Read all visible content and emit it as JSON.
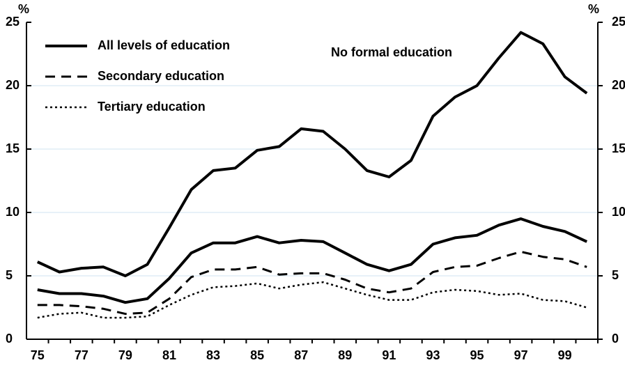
{
  "chart_data": {
    "type": "line",
    "y_label": "%",
    "y2_label": "%",
    "categories": [
      "75",
      null,
      "77",
      null,
      "79",
      null,
      "81",
      null,
      "83",
      null,
      "85",
      null,
      "87",
      null,
      "89",
      null,
      "91",
      null,
      "93",
      null,
      "95",
      null,
      "97",
      null,
      "99",
      null
    ],
    "series": [
      {
        "name": "No formal education",
        "color": "#000000",
        "style": "solid",
        "in_legend": false,
        "values": [
          6.1,
          5.3,
          5.6,
          5.7,
          5.0,
          5.9,
          8.8,
          11.8,
          13.3,
          13.5,
          14.9,
          15.2,
          16.6,
          16.4,
          15.0,
          13.3,
          12.8,
          14.1,
          17.6,
          19.1,
          20.0,
          22.2,
          24.2,
          23.3,
          20.7,
          19.4
        ]
      },
      {
        "name": "All levels of education",
        "color": "#000000",
        "style": "solid",
        "in_legend": true,
        "values": [
          3.9,
          3.6,
          3.6,
          3.4,
          2.9,
          3.2,
          4.8,
          6.8,
          7.6,
          7.6,
          8.1,
          7.6,
          7.8,
          7.7,
          6.8,
          5.9,
          5.4,
          5.9,
          7.5,
          8.0,
          8.2,
          9.0,
          9.5,
          8.9,
          8.5,
          7.7
        ]
      },
      {
        "name": "Secondary education",
        "color": "#000000",
        "style": "dashed",
        "in_legend": true,
        "values": [
          2.7,
          2.7,
          2.6,
          2.4,
          2.0,
          2.1,
          3.2,
          4.9,
          5.5,
          5.5,
          5.7,
          5.1,
          5.2,
          5.2,
          4.7,
          4.0,
          3.7,
          4.0,
          5.3,
          5.7,
          5.8,
          6.4,
          6.9,
          6.5,
          6.3,
          5.7
        ]
      },
      {
        "name": "Tertiary education",
        "color": "#000000",
        "style": "dotted",
        "in_legend": true,
        "values": [
          1.7,
          2.0,
          2.1,
          1.7,
          1.7,
          1.8,
          2.7,
          3.5,
          4.1,
          4.2,
          4.4,
          4.0,
          4.3,
          4.5,
          4.0,
          3.5,
          3.1,
          3.1,
          3.7,
          3.9,
          3.8,
          3.5,
          3.6,
          3.1,
          3.0,
          2.5
        ]
      }
    ],
    "ylim": [
      0,
      25
    ],
    "yticks": [
      0,
      5,
      10,
      15,
      20,
      25
    ],
    "y2lim": [
      0,
      25
    ],
    "y2ticks": [
      0,
      5,
      10,
      15,
      20,
      25
    ],
    "grid": true,
    "grid_color": "#cfe3f0"
  }
}
